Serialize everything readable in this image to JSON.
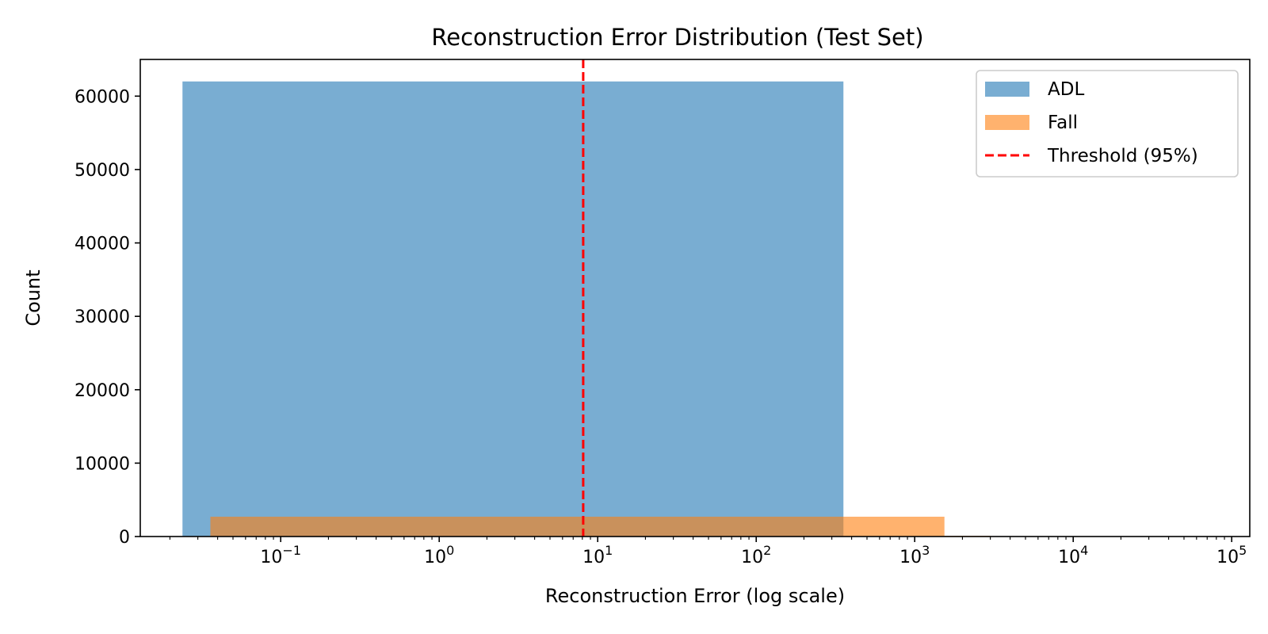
{
  "chart_data": {
    "type": "histogram",
    "title": "Reconstruction Error Distribution (Test Set)",
    "xlabel": "Reconstruction Error (log scale)",
    "ylabel": "Count",
    "x_scale": "log",
    "xlim": [
      0.013,
      130000
    ],
    "ylim": [
      0,
      65000
    ],
    "y_ticks": [
      0,
      10000,
      20000,
      30000,
      40000,
      50000,
      60000
    ],
    "y_tick_labels": [
      "0",
      "10000",
      "20000",
      "30000",
      "40000",
      "50000",
      "60000"
    ],
    "x_ticks": [
      {
        "value": 0.1,
        "base": "10",
        "exp": "−1"
      },
      {
        "value": 1,
        "base": "10",
        "exp": "0"
      },
      {
        "value": 10,
        "base": "10",
        "exp": "1"
      },
      {
        "value": 100,
        "base": "10",
        "exp": "2"
      },
      {
        "value": 1000,
        "base": "10",
        "exp": "3"
      },
      {
        "value": 10000,
        "base": "10",
        "exp": "4"
      },
      {
        "value": 100000,
        "base": "10",
        "exp": "5"
      }
    ],
    "series": [
      {
        "name": "ADL",
        "color": "#1f77b4",
        "opacity": 0.6,
        "bins": [
          {
            "x0": 0.024,
            "x1": 355,
            "count": 62000
          },
          {
            "x0": 355,
            "x1": 100000,
            "count": 0
          }
        ]
      },
      {
        "name": "Fall",
        "color": "#ff7f0e",
        "opacity": 0.6,
        "bins": [
          {
            "x0": 0.036,
            "x1": 1540,
            "count": 2700
          },
          {
            "x0": 1540,
            "x1": 3000,
            "count": 100
          },
          {
            "x0": 3000,
            "x1": 100000,
            "count": 0
          }
        ]
      }
    ],
    "threshold": {
      "name": "Threshold (95%)",
      "value": 8.1,
      "color": "#ff0000"
    },
    "legend": {
      "position": "top-right"
    },
    "grid": false
  }
}
